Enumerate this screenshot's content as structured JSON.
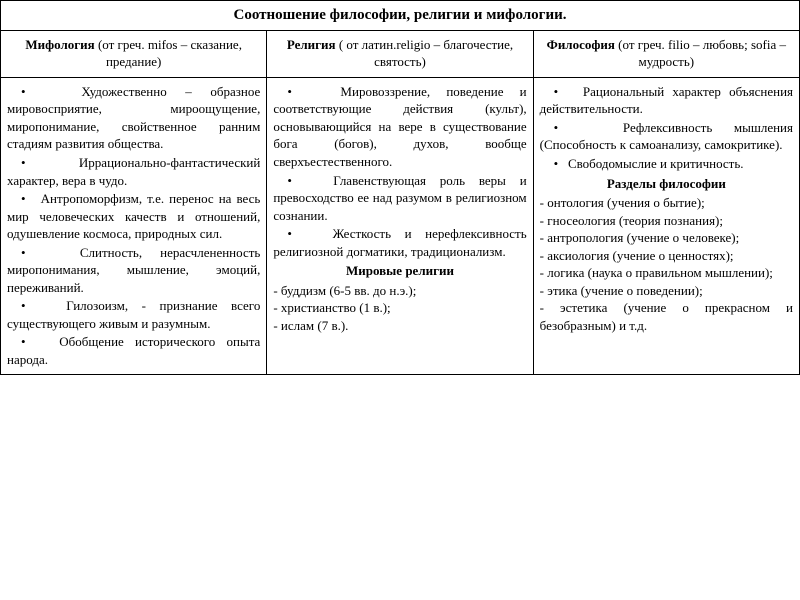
{
  "title": "Соотношение философии, религии и мифологии.",
  "columns": [
    {
      "term": "Мифология",
      "etym": " (от греч. mifos – сказание, предание)"
    },
    {
      "term": "Религия",
      "etym": " ( от латин.religio – благочестие, святость)"
    },
    {
      "term": "Философия",
      "etym": " (от греч. filio – любовь; sofia – мудрость)"
    }
  ],
  "mythology": {
    "items": [
      "•   Художественно – образное мировосприятие, мироощущение, миропонимание, свойственное ранним стадиям развития общества.",
      "•   Иррационально-фантастический характер, вера в чудо.",
      "•   Антропоморфизм, т.е. перенос на весь мир человеческих качеств и отношений, одушевление космоса, природных сил.",
      "•   Слитность, нерасчлененность миропонимания, мышление, эмоций, переживаний.",
      "•   Гилозоизм, - признание всего существующего живым и разумным.",
      "•   Обобщение исторического опыта народа."
    ]
  },
  "religion": {
    "items": [
      "•   Мировоззрение, поведение и соответствующие действия (культ), основывающийся на вере в существование бога (богов), духов, вообще сверхъестественного.",
      "•   Главенствующая роль веры и превосходство ее над разумом в религиозном сознании.",
      "•   Жесткость и нерефлексивность религиозной догматики, традиционализм."
    ],
    "subheading": "Мировые религии",
    "world": [
      "- буддизм (6-5 вв. до н.э.);",
      "- христианство (1 в.);",
      "- ислам (7 в.)."
    ]
  },
  "philosophy": {
    "items": [
      "•   Рациональный характер объяснения действительности.",
      "•   Рефлексивность мышления (Способность к самоанализу, самокритике).",
      "•   Свободомыслие и критичность."
    ],
    "subheading": "Разделы философии",
    "sections": [
      "- онтология (учения о бытие);",
      "- гносеология (теория познания);",
      "- антропология (учение о человеке);",
      "- аксиология (учение о ценностях);",
      "- логика (наука о правильном мышлении);",
      "- этика (учение о поведении);",
      "- эстетика (учение о прекрасном и безобразным) и т.д."
    ]
  }
}
